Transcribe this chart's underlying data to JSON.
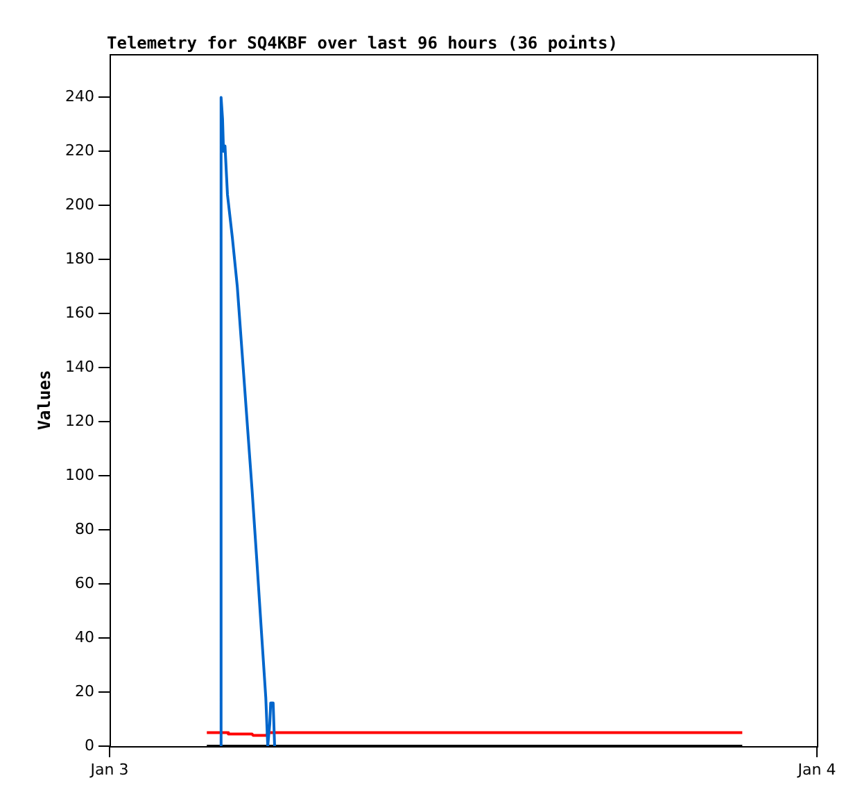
{
  "chart_data": {
    "type": "line",
    "title": "Telemetry for SQ4KBF over last 96 hours (36 points)",
    "ylabel": "Values",
    "xlim": [
      "--01-03",
      "--01-04"
    ],
    "xticks": [
      {
        "value": "--01-03",
        "label": "Jan 3"
      },
      {
        "value": "--01-04",
        "label": "Jan 4"
      }
    ],
    "ylim": [
      0,
      256
    ],
    "yticks": [
      0,
      20,
      40,
      60,
      80,
      100,
      120,
      140,
      160,
      180,
      200,
      220,
      240
    ],
    "grid": false,
    "legend": false,
    "marker": "none",
    "line_style": "solid",
    "series": [
      {
        "color": "#0066cc",
        "x": [
          "--01-03T03:46",
          "--01-03T03:47",
          "--01-03T03:50",
          "--01-03T03:52",
          "--01-03T03:55",
          "--01-03T04:00",
          "--01-03T04:10",
          "--01-03T04:20",
          "--01-03T04:30",
          "--01-03T04:40",
          "--01-03T04:50",
          "--01-03T05:00",
          "--01-03T05:10",
          "--01-03T05:18",
          "--01-03T05:22",
          "--01-03T05:26",
          "--01-03T05:28",
          "--01-03T05:33",
          "--01-03T05:36"
        ],
        "values": [
          0,
          240,
          232,
          220,
          222,
          204,
          188,
          170,
          145,
          120,
          95,
          68,
          40,
          18,
          0,
          8,
          16,
          16,
          0
        ]
      },
      {
        "color": "#ff0000",
        "x": [
          "--01-03T03:18",
          "--01-03T04:00",
          "--01-03T04:02",
          "--01-03T04:50",
          "--01-03T04:52",
          "--01-03T05:20",
          "--01-03T05:22",
          "--01-03T21:28"
        ],
        "values": [
          5,
          5,
          4.5,
          4.5,
          4,
          4,
          5,
          5
        ]
      },
      {
        "color": "#000000",
        "x": [
          "--01-03T03:18",
          "--01-03T21:28"
        ],
        "values": [
          0,
          0
        ]
      }
    ]
  }
}
